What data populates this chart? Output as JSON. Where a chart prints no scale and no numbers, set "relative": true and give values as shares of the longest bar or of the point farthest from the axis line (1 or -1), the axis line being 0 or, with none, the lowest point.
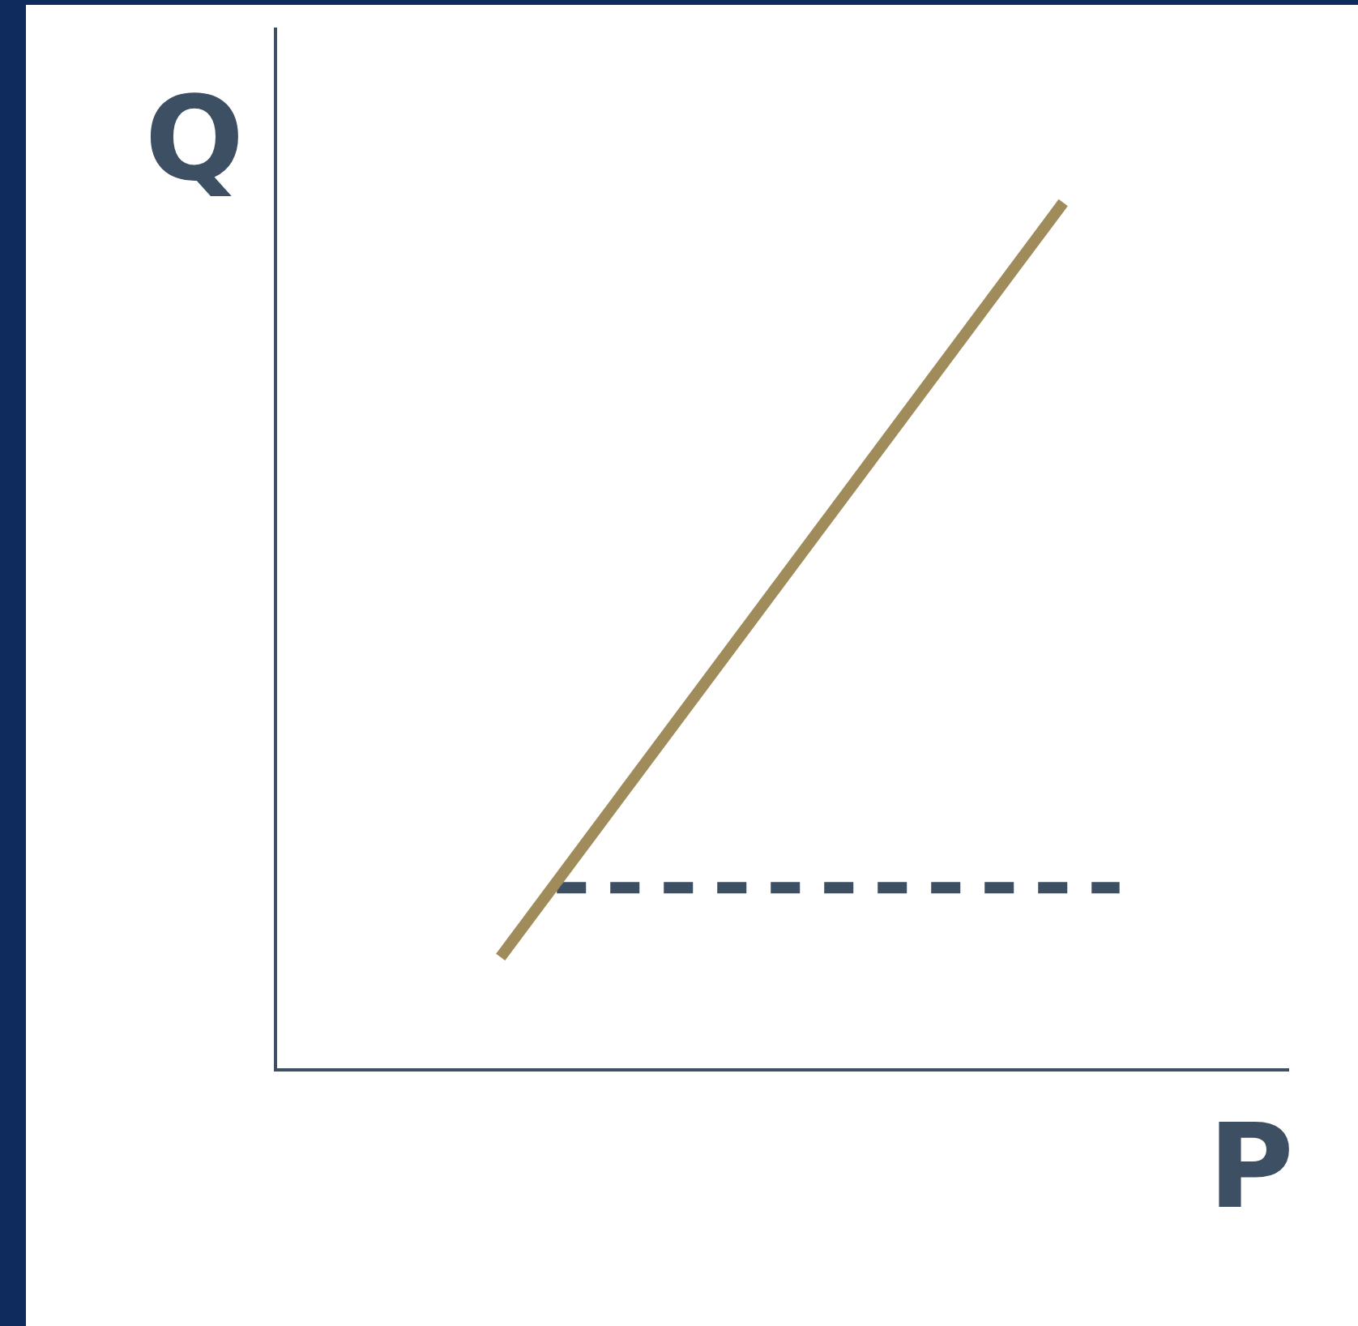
{
  "chart_data": {
    "type": "line",
    "relative": true,
    "xlabel": "P",
    "ylabel": "Q",
    "marker": "none",
    "grid": false,
    "categories": [
      null,
      null,
      null,
      null,
      null,
      null,
      null,
      null,
      null,
      null,
      null,
      null,
      null,
      null,
      null,
      null,
      null,
      null,
      null
    ],
    "series": [
      {
        "color": "#a08c5b",
        "line_style": "solid",
        "values": [
          null,
          null,
          null,
          null,
          0.13,
          null,
          null,
          null,
          null,
          null,
          null,
          null,
          null,
          null,
          1,
          null,
          null,
          null,
          null
        ]
      },
      {
        "color": "#3d4f63",
        "line_style": "dashed",
        "values": [
          null,
          null,
          null,
          null,
          null,
          0.21,
          null,
          null,
          null,
          null,
          null,
          null,
          null,
          null,
          null,
          0.21,
          null,
          null,
          null
        ]
      }
    ]
  }
}
